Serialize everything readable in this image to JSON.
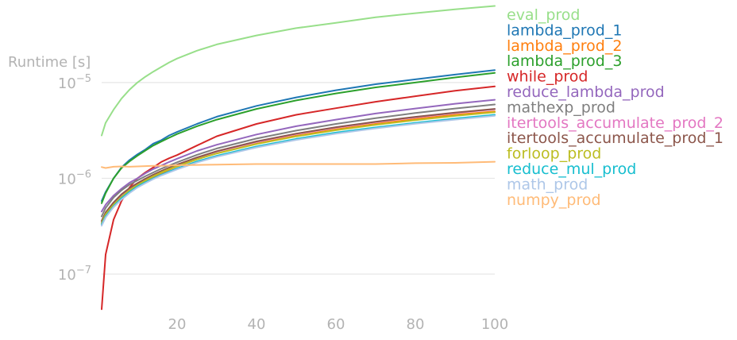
{
  "chart_data": {
    "type": "line",
    "title": "",
    "xlabel": "",
    "ylabel": "Runtime [s]",
    "yscale": "log",
    "xlim": [
      1,
      100
    ],
    "ylim": [
      4e-08,
      7e-05
    ],
    "xticks": [
      20,
      40,
      60,
      80,
      100
    ],
    "yticks": [
      {
        "value": 1e-07,
        "base": "10",
        "exp": "−7"
      },
      {
        "value": 1e-06,
        "base": "10",
        "exp": "−6"
      },
      {
        "value": 1e-05,
        "base": "10",
        "exp": "−5"
      }
    ],
    "grid": "horizontal",
    "legend_position": "right",
    "x": [
      1,
      2,
      4,
      6,
      8,
      10,
      12,
      14,
      16,
      18,
      20,
      25,
      30,
      40,
      50,
      60,
      70,
      80,
      90,
      100
    ],
    "series": [
      {
        "name": "eval_prod",
        "color": "#98df8a",
        "values": [
          2.8e-06,
          3.8e-06,
          5.2e-06,
          6.8e-06,
          8.4e-06,
          1e-05,
          1.15e-05,
          1.3e-05,
          1.45e-05,
          1.62e-05,
          1.78e-05,
          2.15e-05,
          2.5e-05,
          3.1e-05,
          3.7e-05,
          4.2e-05,
          4.8e-05,
          5.3e-05,
          5.8e-05,
          6.3e-05
        ]
      },
      {
        "name": "lambda_prod_1",
        "color": "#1f77b4",
        "values": [
          5.8e-07,
          7.2e-07,
          1e-06,
          1.3e-06,
          1.55e-06,
          1.78e-06,
          2e-06,
          2.3e-06,
          2.5e-06,
          2.8e-06,
          3.05e-06,
          3.7e-06,
          4.4e-06,
          5.7e-06,
          7e-06,
          8.3e-06,
          9.6e-06,
          1.08e-05,
          1.21e-05,
          1.35e-05
        ]
      },
      {
        "name": "lambda_prod_2",
        "color": "#ff7f0e",
        "values": [
          3.3e-07,
          4e-07,
          5e-07,
          6.1e-07,
          7.2e-07,
          8.2e-07,
          9.3e-07,
          1.03e-06,
          1.13e-06,
          1.23e-06,
          1.33e-06,
          1.58e-06,
          1.82e-06,
          2.3e-06,
          2.78e-06,
          3.24e-06,
          3.7e-06,
          4.15e-06,
          4.6e-06,
          5e-06
        ]
      },
      {
        "name": "lambda_prod_3",
        "color": "#2ca02c",
        "values": [
          5.5e-07,
          7e-07,
          1e-06,
          1.28e-06,
          1.5e-06,
          1.72e-06,
          1.95e-06,
          2.2e-06,
          2.42e-06,
          2.65e-06,
          2.9e-06,
          3.5e-06,
          4.1e-06,
          5.3e-06,
          6.5e-06,
          7.7e-06,
          8.9e-06,
          1e-05,
          1.13e-05,
          1.26e-05
        ]
      },
      {
        "name": "while_prod",
        "color": "#d62728",
        "values": [
          4.3e-08,
          1.6e-07,
          3.7e-07,
          5.8e-07,
          8e-07,
          1e-06,
          1.15e-06,
          1.3e-06,
          1.48e-06,
          1.62e-06,
          1.75e-06,
          2.2e-06,
          2.75e-06,
          3.7e-06,
          4.6e-06,
          5.4e-06,
          6.3e-06,
          7.2e-06,
          8.2e-06,
          9.1e-06
        ]
      },
      {
        "name": "reduce_lambda_prod",
        "color": "#9467bd",
        "values": [
          4.5e-07,
          5.3e-07,
          6.6e-07,
          7.8e-07,
          9e-07,
          1e-06,
          1.13e-06,
          1.25e-06,
          1.36e-06,
          1.48e-06,
          1.6e-06,
          1.93e-06,
          2.24e-06,
          2.87e-06,
          3.5e-06,
          4.1e-06,
          4.75e-06,
          5.35e-06,
          6e-06,
          6.6e-06
        ]
      },
      {
        "name": "mathexp_prod",
        "color": "#7f7f7f",
        "values": [
          4e-07,
          4.9e-07,
          6.3e-07,
          7.5e-07,
          8.6e-07,
          9.5e-07,
          1.05e-06,
          1.15e-06,
          1.26e-06,
          1.36e-06,
          1.47e-06,
          1.76e-06,
          2.05e-06,
          2.6e-06,
          3.15e-06,
          3.7e-06,
          4.25e-06,
          4.8e-06,
          5.35e-06,
          5.9e-06
        ]
      },
      {
        "name": "itertools_accumulate_prod_2",
        "color": "#e377c2",
        "values": [
          3.5e-07,
          4.3e-07,
          5.5e-07,
          6.7e-07,
          7.8e-07,
          8.8e-07,
          9.8e-07,
          1.08e-06,
          1.18e-06,
          1.28e-06,
          1.38e-06,
          1.64e-06,
          1.9e-06,
          2.4e-06,
          2.9e-06,
          3.38e-06,
          3.86e-06,
          4.33e-06,
          4.8e-06,
          5.25e-06
        ]
      },
      {
        "name": "itertools_accumulate_prod_1",
        "color": "#8c564b",
        "values": [
          3.6e-07,
          4.4e-07,
          5.6e-07,
          6.8e-07,
          7.9e-07,
          8.9e-07,
          9.9e-07,
          1.09e-06,
          1.19e-06,
          1.29e-06,
          1.39e-06,
          1.65e-06,
          1.92e-06,
          2.43e-06,
          2.93e-06,
          3.42e-06,
          3.9e-06,
          4.38e-06,
          4.85e-06,
          5.3e-06
        ]
      },
      {
        "name": "forloop_prod",
        "color": "#bcbd22",
        "values": [
          3.4e-07,
          4.2e-07,
          5.3e-07,
          6.4e-07,
          7.5e-07,
          8.5e-07,
          9.5e-07,
          1.05e-06,
          1.15e-06,
          1.25e-06,
          1.34e-06,
          1.58e-06,
          1.82e-06,
          2.28e-06,
          2.74e-06,
          3.18e-06,
          3.62e-06,
          4.05e-06,
          4.48e-06,
          4.9e-06
        ]
      },
      {
        "name": "reduce_mul_prod",
        "color": "#17becf",
        "values": [
          3.3e-07,
          4e-07,
          5.1e-07,
          6.2e-07,
          7.2e-07,
          8.2e-07,
          9.1e-07,
          1e-06,
          1.09e-06,
          1.18e-06,
          1.27e-06,
          1.5e-06,
          1.72e-06,
          2.15e-06,
          2.58e-06,
          3e-06,
          3.4e-06,
          3.8e-06,
          4.2e-06,
          4.6e-06
        ]
      },
      {
        "name": "math_prod",
        "color": "#aec7e8",
        "values": [
          3.2e-07,
          3.9e-07,
          5e-07,
          6e-07,
          7e-07,
          8e-07,
          8.9e-07,
          9.8e-07,
          1.07e-06,
          1.15e-06,
          1.24e-06,
          1.46e-06,
          1.68e-06,
          2.1e-06,
          2.52e-06,
          2.92e-06,
          3.32e-06,
          3.72e-06,
          4.1e-06,
          4.5e-06
        ]
      },
      {
        "name": "numpy_prod",
        "color": "#ffbb78",
        "values": [
          1.31e-06,
          1.28e-06,
          1.32e-06,
          1.33e-06,
          1.32e-06,
          1.33e-06,
          1.34e-06,
          1.35e-06,
          1.35e-06,
          1.36e-06,
          1.37e-06,
          1.38e-06,
          1.39e-06,
          1.41e-06,
          1.41e-06,
          1.41e-06,
          1.41e-06,
          1.44e-06,
          1.45e-06,
          1.49e-06
        ]
      }
    ]
  }
}
